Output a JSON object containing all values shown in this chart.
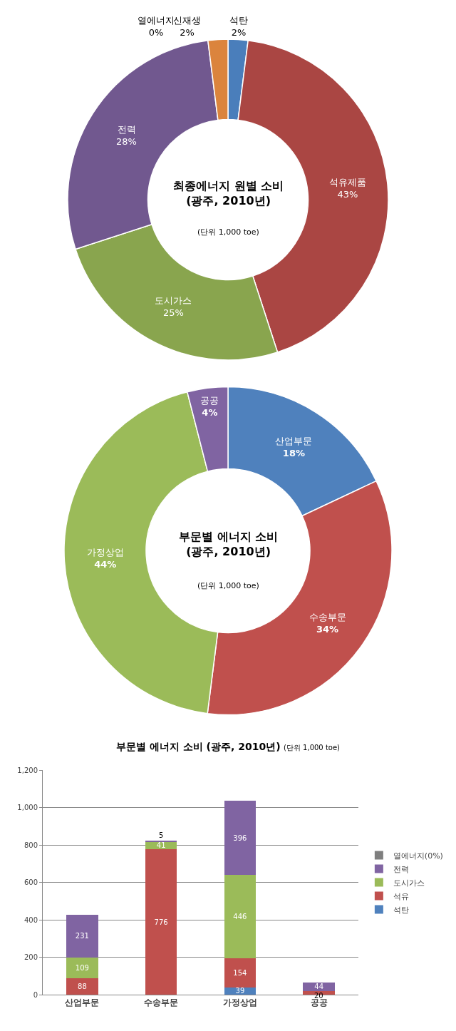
{
  "chart_data": [
    {
      "type": "donut",
      "title": "최종에너지 원별 소비 (광주, 2010년)",
      "subtitle": "(단위 1,000 toe)",
      "categories": [
        "석탄",
        "석유제품",
        "도시가스",
        "전력",
        "열에너지",
        "신재생"
      ],
      "values": [
        2,
        43,
        25,
        28,
        0,
        2
      ],
      "value_labels": [
        "2%",
        "43%",
        "25%",
        "28%",
        "0%",
        "2%"
      ],
      "colors": [
        "#4a7ebb",
        "#aa4643",
        "#89a54e",
        "#71588f",
        "#4198af",
        "#db843d"
      ]
    },
    {
      "type": "donut",
      "title": "부문별 에너지 소비 (광주, 2010년)",
      "subtitle": "(단위 1,000 toe)",
      "categories": [
        "산업부문",
        "수송부문",
        "가정상업",
        "공공"
      ],
      "values": [
        18,
        34,
        44,
        4
      ],
      "value_labels": [
        "18%",
        "34%",
        "44%",
        "4%"
      ],
      "colors": [
        "#4f81bd",
        "#c0504d",
        "#9bbb59",
        "#8064a2"
      ]
    },
    {
      "type": "bar",
      "title": "부문별 에너지 소비 (광주, 2010년)",
      "subtitle": "(단위 1,000 toe)",
      "categories": [
        "산업부문",
        "수송부문",
        "가정상업",
        "공공"
      ],
      "stacked": true,
      "data_labels": true,
      "grid": "y",
      "legend": "right",
      "ylim": [
        0,
        1200
      ],
      "yticks": [
        0,
        200,
        400,
        600,
        800,
        {
          "value": 1000,
          "label": "1,000"
        },
        {
          "value": 1200,
          "label": "1,200"
        }
      ],
      "series": [
        {
          "name": "석탄",
          "color": "#4f81bd",
          "values": [
            null,
            null,
            39,
            null
          ]
        },
        {
          "name": "석유",
          "color": "#c0504d",
          "values": [
            88,
            776,
            154,
            20
          ]
        },
        {
          "name": "도시가스",
          "color": "#9bbb59",
          "values": [
            109,
            41,
            446,
            null
          ]
        },
        {
          "name": "전력",
          "color": "#8064a2",
          "values": [
            231,
            5,
            396,
            44
          ]
        },
        {
          "name": "열에너지(0%)",
          "color": "#7f7f7f",
          "values": [
            null,
            null,
            null,
            null
          ]
        }
      ]
    }
  ]
}
